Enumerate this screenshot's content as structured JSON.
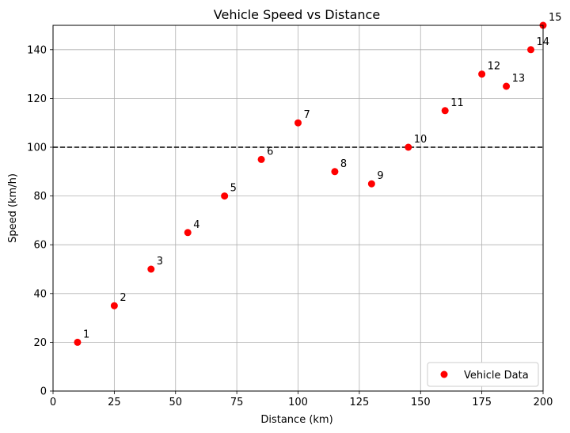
{
  "chart_data": {
    "type": "scatter",
    "title": "Vehicle Speed vs Distance",
    "xlabel": "Distance (km)",
    "ylabel": "Speed (km/h)",
    "xlim": [
      0,
      200
    ],
    "ylim": [
      0,
      150
    ],
    "xticks": [
      0,
      25,
      50,
      75,
      100,
      125,
      150,
      175,
      200
    ],
    "yticks": [
      0,
      20,
      40,
      60,
      80,
      100,
      120,
      140
    ],
    "grid": true,
    "legend_position": "bottom-right",
    "reference_line": {
      "y": 100,
      "style": "dashed",
      "color": "#000000"
    },
    "series": [
      {
        "name": "Vehicle Data",
        "color": "#ff0000",
        "x": [
          10,
          25,
          40,
          55,
          70,
          85,
          100,
          115,
          130,
          145,
          160,
          175,
          185,
          195,
          200
        ],
        "y": [
          20,
          35,
          50,
          65,
          80,
          95,
          110,
          90,
          85,
          100,
          115,
          130,
          125,
          140,
          150
        ],
        "labels": [
          "1",
          "2",
          "3",
          "4",
          "5",
          "6",
          "7",
          "8",
          "9",
          "10",
          "11",
          "12",
          "13",
          "14",
          "15"
        ]
      }
    ]
  }
}
